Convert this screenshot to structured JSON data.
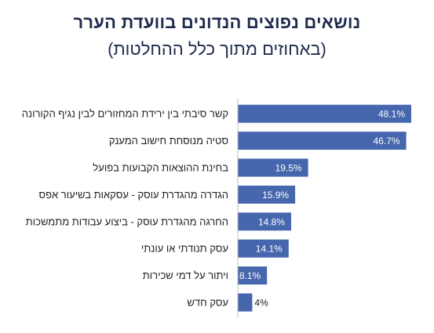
{
  "title": "נושאים נפוצים הנדונים בוועדת הערר",
  "subtitle": "(באחוזים מתוך כלל ההחלטות)",
  "colors": {
    "bar": "#4666ad",
    "axis": "#bfbfbf",
    "label_inside": "#ffffff",
    "label_outside": "#222222",
    "title": "#1f2b4d"
  },
  "chart_data": {
    "type": "bar",
    "orientation": "horizontal",
    "categories": [
      "קשר סיבתי בין ירידת המחזורים לבין נגיף הקורונה",
      "סטיה מנוסחת חישוב המענק",
      "בחינת ההוצאות הקבועות בפועל",
      "הגדרה מהגדרת עוסק - עסקאות בשיעור אפס",
      "החרגה מהגדרת עוסק - ביצוע עבודות מתמשכות",
      "עסק תנודתי או עונתי",
      "ויתור על דמי שכירות",
      "עסק חדש"
    ],
    "values": [
      48.1,
      46.7,
      19.5,
      15.9,
      14.8,
      14.1,
      8.1,
      4
    ],
    "value_labels": [
      "48.1%",
      "46.7%",
      "19.5%",
      "15.9%",
      "14.8%",
      "14.1%",
      "8.1%",
      "4%"
    ],
    "xlim": [
      0,
      48.1
    ],
    "grid": false,
    "legend": "none"
  }
}
